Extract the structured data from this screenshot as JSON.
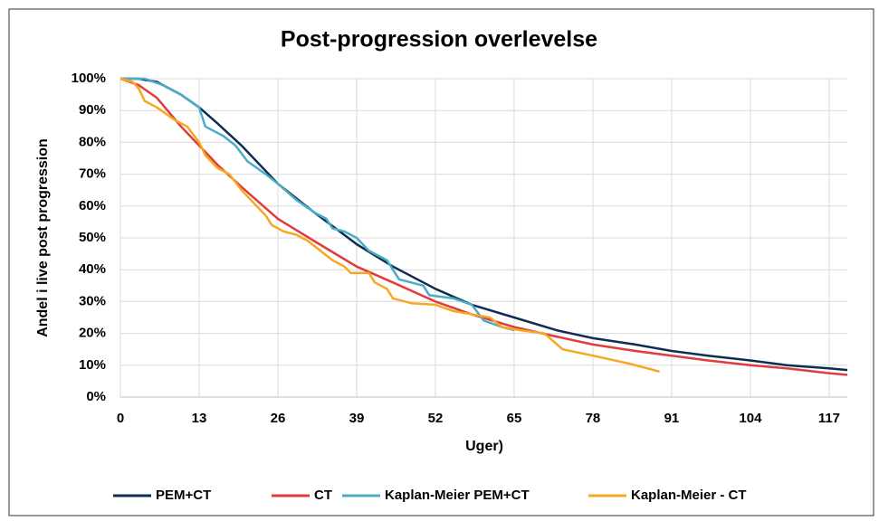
{
  "chart_data": {
    "type": "line",
    "title": "Post-progression overlevelse",
    "x_label": "Uger)",
    "y_label": "Andel i live post progression",
    "xlim": [
      0,
      120
    ],
    "xticks": [
      0,
      13,
      26,
      39,
      52,
      65,
      78,
      91,
      104,
      117
    ],
    "ylim": [
      0,
      100
    ],
    "yticks": [
      {
        "value": 0,
        "label": "0%"
      },
      {
        "value": 10,
        "label": "10%"
      },
      {
        "value": 20,
        "label": "20%"
      },
      {
        "value": 30,
        "label": "30%"
      },
      {
        "value": 40,
        "label": "40%"
      },
      {
        "value": 50,
        "label": "50%"
      },
      {
        "value": 60,
        "label": "60%"
      },
      {
        "value": 70,
        "label": "70%"
      },
      {
        "value": 80,
        "label": "80%"
      },
      {
        "value": 90,
        "label": "90%"
      },
      {
        "value": 100,
        "label": "100%"
      }
    ],
    "grid": true,
    "legend": "bottom",
    "series": [
      {
        "name": "PEM+CT",
        "color": "#0d2d52",
        "x": [
          0,
          3,
          6,
          10,
          13,
          16,
          20,
          26,
          32,
          39,
          45,
          52,
          58,
          65,
          72,
          78,
          85,
          91,
          97,
          104,
          110,
          117,
          120
        ],
        "values": [
          100,
          100,
          99,
          95,
          91,
          86,
          79,
          67,
          58,
          48,
          41,
          34,
          29,
          25,
          21,
          18.5,
          16.5,
          14.5,
          13,
          11.5,
          10,
          9,
          8.5
        ]
      },
      {
        "name": "CT",
        "color": "#e03c3c",
        "x": [
          0,
          3,
          6,
          10,
          13,
          16,
          20,
          26,
          32,
          39,
          45,
          52,
          58,
          65,
          72,
          78,
          85,
          91,
          97,
          104,
          110,
          117,
          120
        ],
        "values": [
          100,
          98,
          94,
          85,
          79,
          73,
          66,
          56,
          49,
          41,
          36,
          30,
          26,
          22,
          19,
          16.5,
          14.5,
          13,
          11.5,
          10,
          9,
          7.5,
          7
        ]
      },
      {
        "name": "Kaplan-Meier PEM+CT",
        "color": "#4bacc6",
        "x": [
          0,
          4,
          7,
          10,
          13,
          14,
          17,
          19,
          21,
          24,
          26,
          29,
          32,
          34,
          35,
          37,
          39,
          41,
          44,
          46,
          50,
          51,
          55,
          58,
          60,
          63,
          65
        ],
        "values": [
          100,
          100,
          98,
          95,
          91,
          85,
          82,
          79,
          74,
          70,
          67,
          62,
          58,
          56,
          53,
          52,
          50,
          46,
          43,
          37,
          35,
          32,
          31,
          29,
          24,
          22,
          21
        ]
      },
      {
        "name": "Kaplan-Meier - CT",
        "color": "#f7a823",
        "x": [
          0,
          2,
          3,
          4,
          6,
          9,
          11,
          13,
          14,
          16,
          18,
          20,
          22,
          24,
          25,
          27,
          29,
          31,
          33,
          35,
          37,
          38,
          41,
          42,
          44,
          45,
          48,
          52,
          55,
          58,
          61,
          63,
          66,
          70,
          73,
          78,
          84,
          89
        ],
        "values": [
          100,
          99,
          97,
          93,
          91,
          87,
          85,
          80,
          76,
          72,
          70,
          65,
          61,
          57,
          54,
          52,
          51,
          49,
          46,
          43,
          41,
          39,
          39,
          36,
          34,
          31,
          29.5,
          29,
          27,
          26,
          25,
          22,
          21,
          20,
          15,
          13,
          10.5,
          8
        ]
      }
    ]
  }
}
